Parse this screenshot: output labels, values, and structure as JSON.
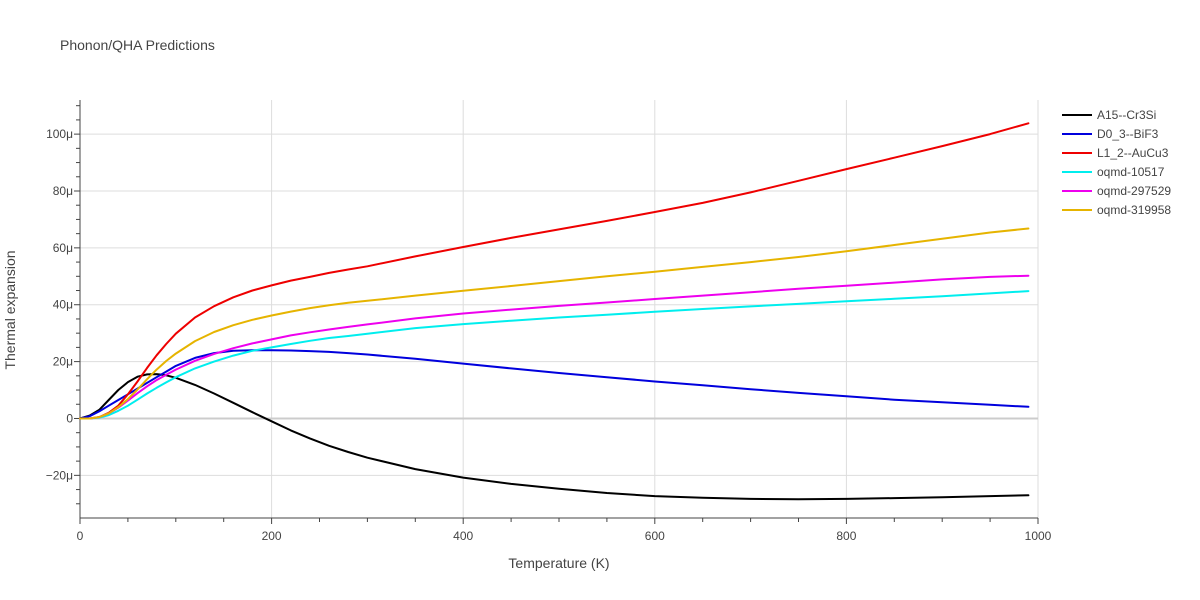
{
  "chart_data": {
    "type": "line",
    "title": "Phonon/QHA Predictions",
    "xlabel": "Temperature (K)",
    "ylabel": "Thermal expansion",
    "xlim": [
      0,
      1000
    ],
    "ylim": [
      -3.5e-05,
      0.000112
    ],
    "x_ticks": [
      {
        "value": 0,
        "label": "0"
      },
      {
        "value": 200,
        "label": "200"
      },
      {
        "value": 400,
        "label": "400"
      },
      {
        "value": 600,
        "label": "600"
      },
      {
        "value": 800,
        "label": "800"
      },
      {
        "value": 1000,
        "label": "1000"
      }
    ],
    "y_ticks": [
      {
        "value": -2e-05,
        "label": "−20μ"
      },
      {
        "value": 0,
        "label": "0"
      },
      {
        "value": 2e-05,
        "label": "20μ"
      },
      {
        "value": 4e-05,
        "label": "40μ"
      },
      {
        "value": 6e-05,
        "label": "60μ"
      },
      {
        "value": 8e-05,
        "label": "80μ"
      },
      {
        "value": 0.0001,
        "label": "100μ"
      }
    ],
    "grid": true,
    "legend_position": "top-right",
    "series": [
      {
        "name": "A15--Cr3Si",
        "color": "#000000",
        "x": [
          0,
          10,
          20,
          30,
          40,
          50,
          60,
          70,
          80,
          90,
          100,
          120,
          140,
          160,
          180,
          200,
          220,
          240,
          260,
          280,
          300,
          350,
          400,
          450,
          500,
          550,
          600,
          650,
          700,
          750,
          800,
          850,
          900,
          950,
          990
        ],
        "y": [
          0,
          1e-06,
          3e-06,
          6.5e-06,
          1e-05,
          1.28e-05,
          1.47e-05,
          1.55e-05,
          1.56e-05,
          1.52e-05,
          1.43e-05,
          1.18e-05,
          8.8e-06,
          5.5e-06,
          2.2e-06,
          -1e-06,
          -4.2e-06,
          -7e-06,
          -9.6e-06,
          -1.18e-05,
          -1.38e-05,
          -1.78e-05,
          -2.08e-05,
          -2.3e-05,
          -2.47e-05,
          -2.62e-05,
          -2.73e-05,
          -2.79e-05,
          -2.83e-05,
          -2.84e-05,
          -2.83e-05,
          -2.8e-05,
          -2.77e-05,
          -2.73e-05,
          -2.7e-05
        ]
      },
      {
        "name": "D0_3--BiF3",
        "color": "#0000dd",
        "x": [
          0,
          10,
          20,
          30,
          40,
          50,
          60,
          70,
          80,
          90,
          100,
          120,
          140,
          160,
          180,
          200,
          220,
          240,
          260,
          280,
          300,
          350,
          400,
          450,
          500,
          550,
          600,
          650,
          700,
          750,
          800,
          850,
          900,
          950,
          990
        ],
        "y": [
          0,
          8e-07,
          2.5e-06,
          4.5e-06,
          6.5e-06,
          8.5e-06,
          1.05e-05,
          1.25e-05,
          1.45e-05,
          1.65e-05,
          1.85e-05,
          2.13e-05,
          2.3e-05,
          2.38e-05,
          2.4e-05,
          2.4e-05,
          2.39e-05,
          2.37e-05,
          2.34e-05,
          2.3e-05,
          2.25e-05,
          2.1e-05,
          1.93e-05,
          1.76e-05,
          1.6e-05,
          1.45e-05,
          1.3e-05,
          1.17e-05,
          1.03e-05,
          9e-06,
          7.8e-06,
          6.6e-06,
          5.7e-06,
          4.8e-06,
          4.1e-06
        ]
      },
      {
        "name": "L1_2--AuCu3",
        "color": "#ee0000",
        "x": [
          0,
          10,
          20,
          30,
          40,
          50,
          60,
          70,
          80,
          90,
          100,
          120,
          140,
          160,
          180,
          200,
          220,
          240,
          260,
          280,
          300,
          350,
          400,
          450,
          500,
          550,
          600,
          650,
          700,
          750,
          800,
          850,
          900,
          950,
          990
        ],
        "y": [
          0,
          0,
          5e-07,
          2e-06,
          4.5e-06,
          8.5e-06,
          1.3e-05,
          1.78e-05,
          2.22e-05,
          2.62e-05,
          2.98e-05,
          3.55e-05,
          3.95e-05,
          4.26e-05,
          4.5e-05,
          4.68e-05,
          4.85e-05,
          4.98e-05,
          5.12e-05,
          5.24e-05,
          5.35e-05,
          5.7e-05,
          6.03e-05,
          6.35e-05,
          6.65e-05,
          6.95e-05,
          7.26e-05,
          7.58e-05,
          7.95e-05,
          8.36e-05,
          8.77e-05,
          9.17e-05,
          9.58e-05,
          0.0001,
          0.0001038
        ]
      },
      {
        "name": "oqmd-10517",
        "color": "#00eeee",
        "x": [
          0,
          10,
          20,
          30,
          40,
          50,
          60,
          70,
          80,
          90,
          100,
          120,
          140,
          160,
          180,
          200,
          220,
          240,
          260,
          280,
          300,
          350,
          400,
          450,
          500,
          550,
          600,
          650,
          700,
          750,
          800,
          850,
          900,
          950,
          990
        ],
        "y": [
          0,
          0,
          3e-07,
          1.2e-06,
          2.7e-06,
          4.5e-06,
          6.6e-06,
          8.8e-06,
          1.08e-05,
          1.27e-05,
          1.45e-05,
          1.76e-05,
          2e-05,
          2.21e-05,
          2.38e-05,
          2.5e-05,
          2.62e-05,
          2.73e-05,
          2.83e-05,
          2.9e-05,
          2.98e-05,
          3.18e-05,
          3.32e-05,
          3.44e-05,
          3.55e-05,
          3.65e-05,
          3.75e-05,
          3.85e-05,
          3.94e-05,
          4.03e-05,
          4.12e-05,
          4.21e-05,
          4.3e-05,
          4.4e-05,
          4.48e-05
        ]
      },
      {
        "name": "oqmd-297529",
        "color": "#ee00ee",
        "x": [
          0,
          10,
          20,
          30,
          40,
          50,
          60,
          70,
          80,
          90,
          100,
          120,
          140,
          160,
          180,
          200,
          220,
          240,
          260,
          280,
          300,
          350,
          400,
          450,
          500,
          550,
          600,
          650,
          700,
          750,
          800,
          850,
          900,
          950,
          990
        ],
        "y": [
          0,
          0,
          5e-07,
          1.8e-06,
          3.8e-06,
          6.3e-06,
          8.9e-06,
          1.13e-05,
          1.35e-05,
          1.54e-05,
          1.72e-05,
          2.03e-05,
          2.27e-05,
          2.47e-05,
          2.64e-05,
          2.78e-05,
          2.92e-05,
          3.03e-05,
          3.13e-05,
          3.22e-05,
          3.31e-05,
          3.52e-05,
          3.69e-05,
          3.83e-05,
          3.96e-05,
          4.08e-05,
          4.2e-05,
          4.32e-05,
          4.44e-05,
          4.56e-05,
          4.67e-05,
          4.78e-05,
          4.89e-05,
          4.98e-05,
          5.02e-05
        ]
      },
      {
        "name": "oqmd-319958",
        "color": "#e6b400",
        "x": [
          0,
          10,
          20,
          30,
          40,
          50,
          60,
          70,
          80,
          90,
          100,
          120,
          140,
          160,
          180,
          200,
          220,
          240,
          260,
          280,
          300,
          350,
          400,
          450,
          500,
          550,
          600,
          650,
          700,
          750,
          800,
          850,
          900,
          950,
          990
        ],
        "y": [
          0,
          0,
          5e-07,
          1.8e-06,
          4e-06,
          6.8e-06,
          1.02e-05,
          1.38e-05,
          1.72e-05,
          2.02e-05,
          2.28e-05,
          2.72e-05,
          3.04e-05,
          3.28e-05,
          3.47e-05,
          3.62e-05,
          3.76e-05,
          3.88e-05,
          3.98e-05,
          4.07e-05,
          4.14e-05,
          4.32e-05,
          4.49e-05,
          4.66e-05,
          4.83e-05,
          5e-05,
          5.16e-05,
          5.33e-05,
          5.5e-05,
          5.68e-05,
          5.88e-05,
          6.1e-05,
          6.32e-05,
          6.54e-05,
          6.68e-05
        ]
      }
    ]
  }
}
